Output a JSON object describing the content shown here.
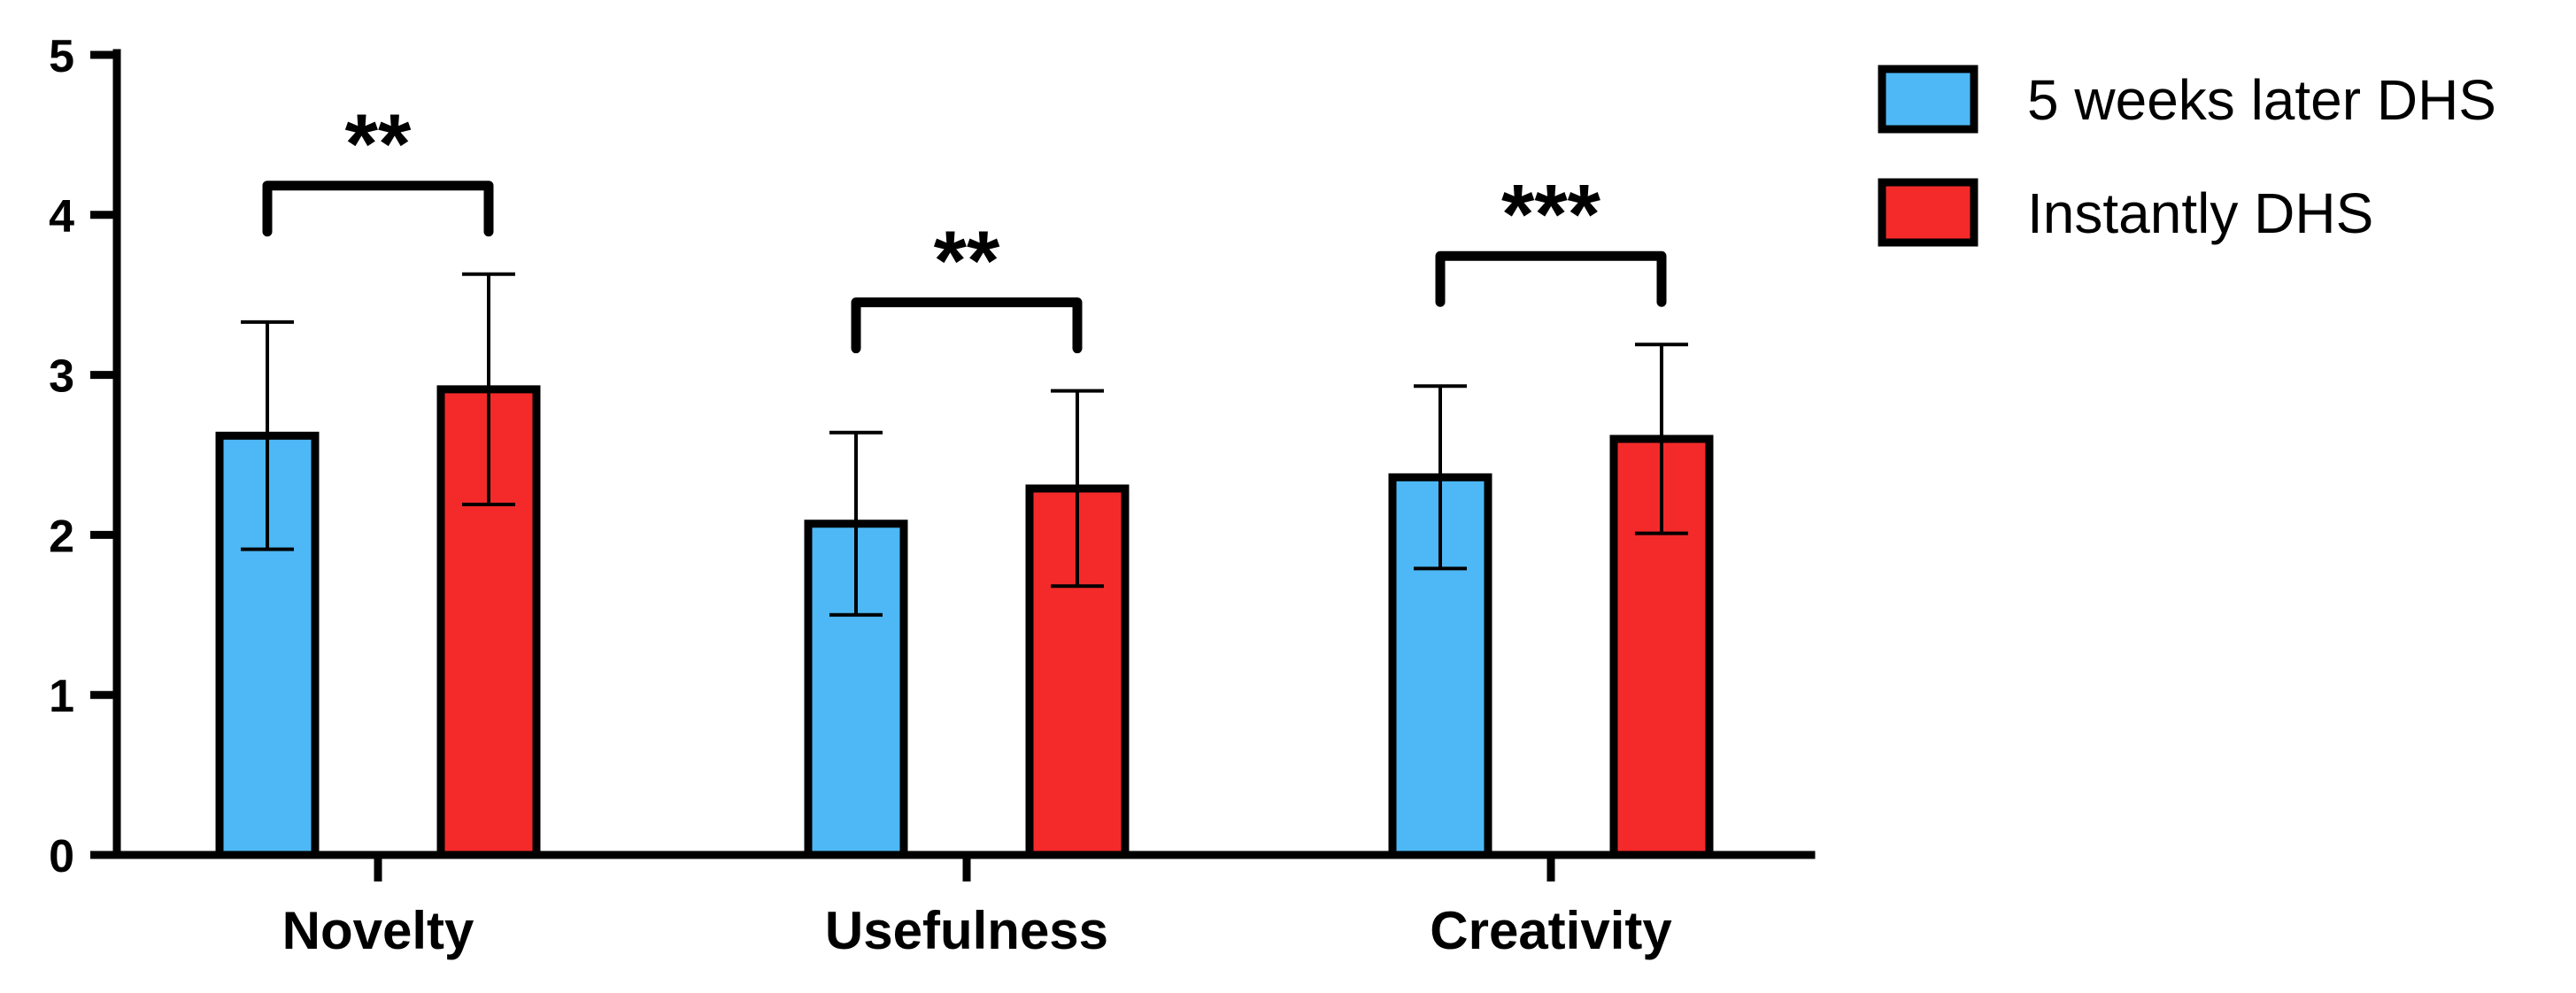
{
  "chart_data": {
    "type": "bar",
    "categories": [
      "Novelty",
      "Usefulness",
      "Creativity"
    ],
    "series": [
      {
        "name": "5 weeks later DHS",
        "color": "#4db8f5",
        "values": [
          2.62,
          2.07,
          2.36
        ],
        "error": [
          0.71,
          0.57,
          0.57
        ]
      },
      {
        "name": "Instantly DHS",
        "color": "#f42a2a",
        "values": [
          2.91,
          2.29,
          2.6
        ],
        "error": [
          0.72,
          0.61,
          0.59
        ]
      }
    ],
    "yticks": [
      "0",
      "1",
      "2",
      "3",
      "4",
      "5"
    ],
    "ylim": [
      0,
      5
    ],
    "significance": [
      "**",
      "**",
      "***"
    ],
    "legend_position": "top-right",
    "grid": false,
    "title": "",
    "xlabel": "",
    "ylabel": ""
  }
}
